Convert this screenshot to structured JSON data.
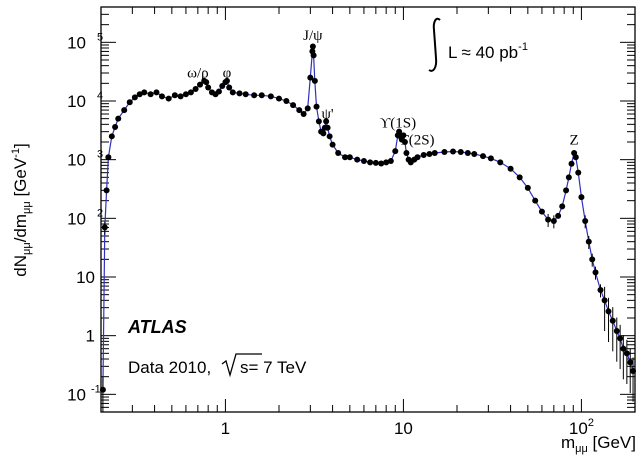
{
  "chart_data": {
    "type": "scatter",
    "xscale": "log",
    "yscale": "log",
    "xlim": [
      0.2,
      200
    ],
    "ylim": [
      0.05,
      400000
    ],
    "xlabel": "m",
    "xlabel_sub": "μμ",
    "xlabel_unit": " [GeV]",
    "ylabel": "dN",
    "ylabel_sub1": "μμ",
    "ylabel_mid": "/dm",
    "ylabel_sub2": "μμ",
    "ylabel_unit": " [GeV",
    "ylabel_unit_sup": "-1",
    "ylabel_unit_end": "]",
    "x_ticks": [
      {
        "value": 1,
        "label": "1"
      },
      {
        "value": 10,
        "label": "10"
      },
      {
        "value": 100,
        "label": "10",
        "sup": "2"
      }
    ],
    "y_ticks": [
      {
        "value": 0.1,
        "label": "10",
        "sup": "-1"
      },
      {
        "value": 1,
        "label": "1",
        "sup": ""
      },
      {
        "value": 10,
        "label": "10",
        "sup": ""
      },
      {
        "value": 100,
        "label": "10",
        "sup": "2"
      },
      {
        "value": 1000,
        "label": "10",
        "sup": "3"
      },
      {
        "value": 10000,
        "label": "10",
        "sup": "4"
      },
      {
        "value": 100000,
        "label": "10",
        "sup": "5"
      }
    ],
    "luminosity": {
      "prefix": "L ≈ 40 pb",
      "sup": "-1"
    },
    "experiment": "ATLAS",
    "dataset": {
      "prefix": "Data 2010,",
      "value": "s= 7 TeV"
    },
    "annotations": [
      {
        "text": "ω/ρ",
        "x": 0.7,
        "y": 25000
      },
      {
        "text": "φ",
        "x": 1.02,
        "y": 25000
      },
      {
        "text": "J/ψ",
        "x": 3.1,
        "y": 110000
      },
      {
        "text": "ψ'",
        "x": 3.75,
        "y": 5000
      },
      {
        "text": "ϒ(1S)",
        "x": 9.3,
        "y": 3500
      },
      {
        "text": "ϒ(2S)",
        "x": 11.8,
        "y": 1800
      },
      {
        "text": "Z",
        "x": 91,
        "y": 1800
      }
    ],
    "series": [
      {
        "color": "#000000",
        "line_color": "#3030c0",
        "points": [
          [
            0.205,
            0.12
          ],
          [
            0.21,
            70
          ],
          [
            0.215,
            300
          ],
          [
            0.22,
            1100
          ],
          [
            0.23,
            2500
          ],
          [
            0.24,
            3600
          ],
          [
            0.25,
            5000
          ],
          [
            0.27,
            7000
          ],
          [
            0.29,
            9500
          ],
          [
            0.31,
            11500
          ],
          [
            0.33,
            13000
          ],
          [
            0.35,
            14000
          ],
          [
            0.38,
            13000
          ],
          [
            0.41,
            14000
          ],
          [
            0.44,
            12000
          ],
          [
            0.48,
            11000
          ],
          [
            0.52,
            12500
          ],
          [
            0.56,
            12000
          ],
          [
            0.6,
            13000
          ],
          [
            0.64,
            14000
          ],
          [
            0.68,
            16000
          ],
          [
            0.72,
            19000
          ],
          [
            0.76,
            22000
          ],
          [
            0.78,
            21000
          ],
          [
            0.8,
            17000
          ],
          [
            0.84,
            14000
          ],
          [
            0.88,
            13000
          ],
          [
            0.92,
            14500
          ],
          [
            0.96,
            18000
          ],
          [
            1.0,
            21000
          ],
          [
            1.02,
            22000
          ],
          [
            1.05,
            17000
          ],
          [
            1.1,
            14000
          ],
          [
            1.2,
            13500
          ],
          [
            1.3,
            13000
          ],
          [
            1.45,
            12500
          ],
          [
            1.6,
            12500
          ],
          [
            1.8,
            12000
          ],
          [
            2.0,
            11000
          ],
          [
            2.2,
            10000
          ],
          [
            2.4,
            8500
          ],
          [
            2.6,
            7000
          ],
          [
            2.75,
            6000
          ],
          [
            2.9,
            7500
          ],
          [
            3.0,
            25000
          ],
          [
            3.08,
            70000
          ],
          [
            3.1,
            85000
          ],
          [
            3.13,
            60000
          ],
          [
            3.18,
            22000
          ],
          [
            3.25,
            8000
          ],
          [
            3.35,
            4500
          ],
          [
            3.45,
            3000
          ],
          [
            3.55,
            2800
          ],
          [
            3.62,
            3500
          ],
          [
            3.68,
            4500
          ],
          [
            3.75,
            3500
          ],
          [
            3.85,
            2500
          ],
          [
            4.0,
            1800
          ],
          [
            4.3,
            1300
          ],
          [
            4.7,
            1100
          ],
          [
            5.0,
            1100
          ],
          [
            5.5,
            1000
          ],
          [
            6.0,
            950
          ],
          [
            6.5,
            900
          ],
          [
            7.0,
            880
          ],
          [
            7.5,
            860
          ],
          [
            8.0,
            900
          ],
          [
            8.5,
            950
          ],
          [
            9.0,
            1400
          ],
          [
            9.3,
            2600
          ],
          [
            9.46,
            3000
          ],
          [
            9.6,
            2500
          ],
          [
            9.8,
            2200
          ],
          [
            10.0,
            2600
          ],
          [
            10.2,
            2000
          ],
          [
            10.4,
            1300
          ],
          [
            10.7,
            1000
          ],
          [
            11.0,
            900
          ],
          [
            11.5,
            1000
          ],
          [
            12.0,
            1100
          ],
          [
            13.0,
            1200
          ],
          [
            14.0,
            1250
          ],
          [
            15.0,
            1300
          ],
          [
            17.0,
            1350
          ],
          [
            19.0,
            1380
          ],
          [
            21.0,
            1350
          ],
          [
            23.0,
            1300
          ],
          [
            25.0,
            1250
          ],
          [
            28.0,
            1150
          ],
          [
            31.0,
            1050
          ],
          [
            35.0,
            900
          ],
          [
            40.0,
            700
          ],
          [
            45.0,
            500
          ],
          [
            50.0,
            330
          ],
          [
            55.0,
            200
          ],
          [
            60.0,
            130
          ],
          [
            65.0,
            95
          ],
          [
            70.0,
            90
          ],
          [
            74.0,
            110
          ],
          [
            78.0,
            160
          ],
          [
            82.0,
            300
          ],
          [
            85.0,
            500
          ],
          [
            88.0,
            850
          ],
          [
            91.0,
            1300
          ],
          [
            93.0,
            1100
          ],
          [
            96.0,
            600
          ],
          [
            100.0,
            230
          ],
          [
            105.0,
            90
          ],
          [
            110.0,
            40
          ],
          [
            115.0,
            20
          ],
          [
            120.0,
            12
          ],
          [
            128.0,
            6
          ],
          [
            135.0,
            4
          ],
          [
            142.0,
            2.6
          ],
          [
            150.0,
            1.8
          ],
          [
            158.0,
            1.2
          ],
          [
            165.0,
            0.9
          ],
          [
            172.0,
            0.6
          ],
          [
            180.0,
            0.5
          ],
          [
            188.0,
            0.35
          ],
          [
            195.0,
            0.25
          ]
        ]
      }
    ]
  }
}
